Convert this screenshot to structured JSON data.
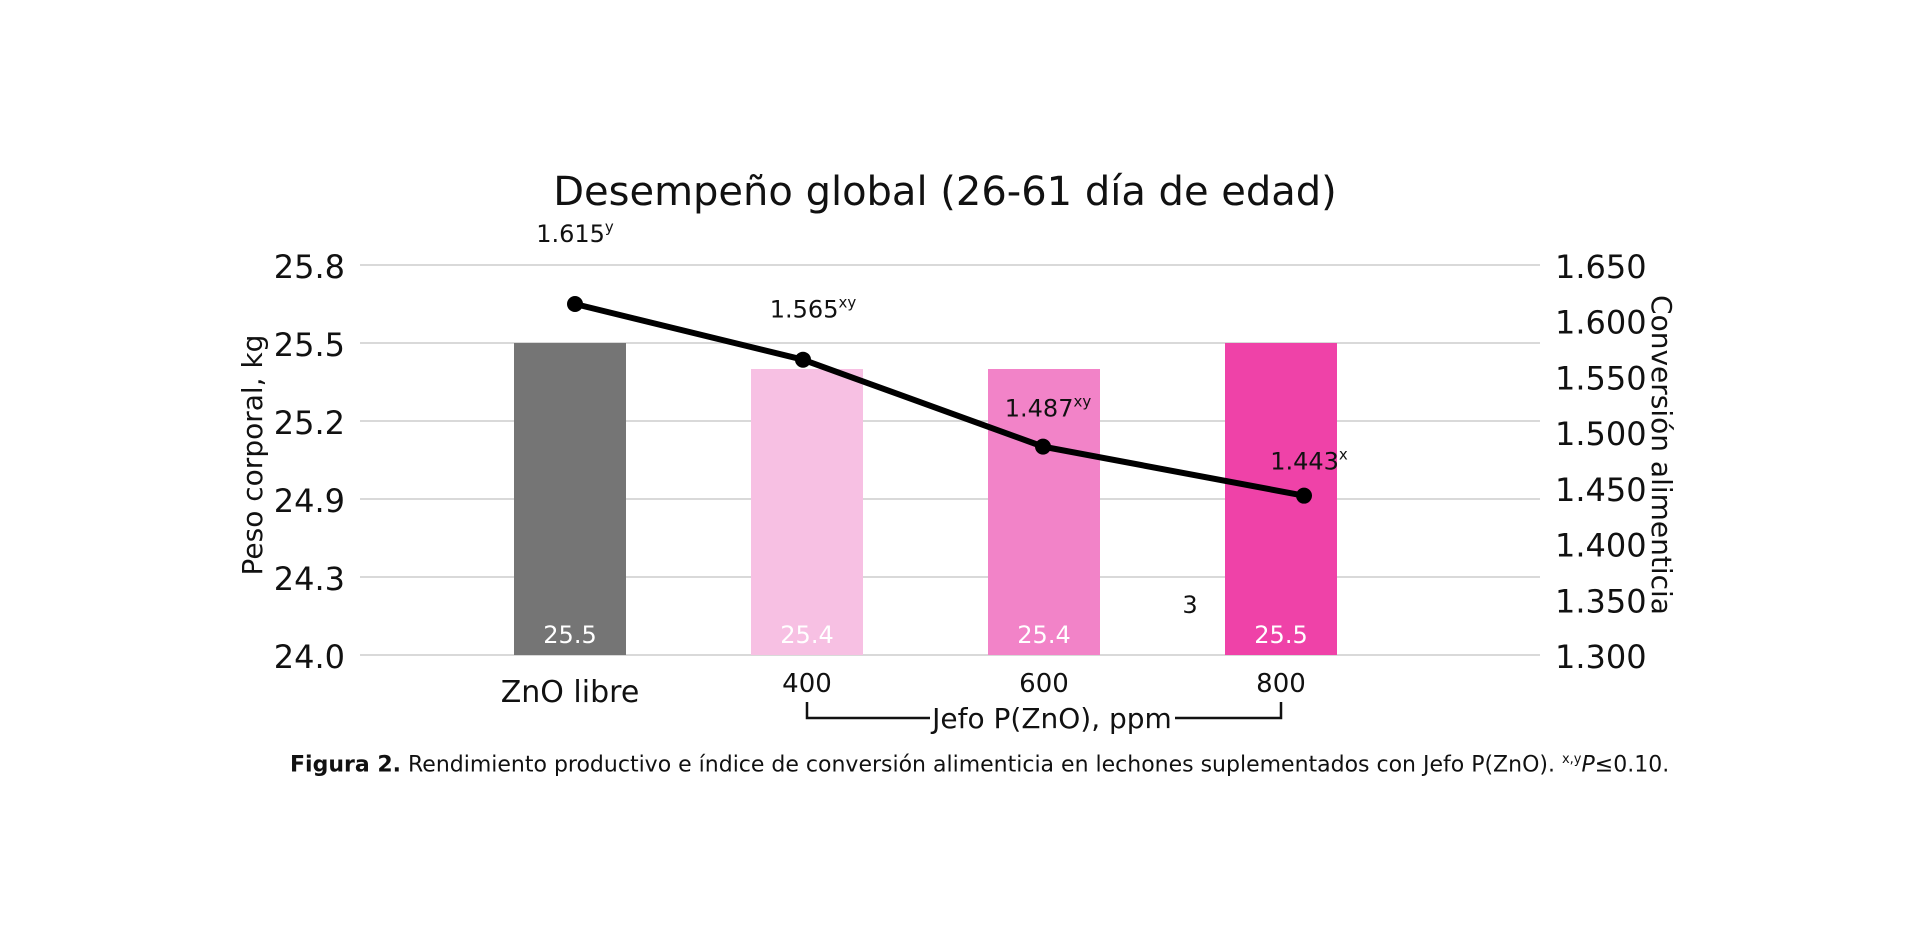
{
  "chart_data": {
    "type": "bar",
    "title": "Desempeño global (26-61 día de edad)",
    "categories": [
      "ZnO libre",
      "400",
      "600",
      "800"
    ],
    "group_label": "Jefo P(ZnO), ppm",
    "series": [
      {
        "name": "Peso corporal, kg",
        "type": "bar",
        "axis": "left",
        "values": [
          25.5,
          25.4,
          25.4,
          25.5
        ],
        "labels": [
          "25.5",
          "25.4",
          "25.4",
          "25.5"
        ],
        "colors": [
          "#757575",
          "#f7c0e3",
          "#f283c8",
          "#ef42a8"
        ]
      },
      {
        "name": "Conversión alimenticia",
        "type": "line",
        "axis": "right",
        "values": [
          1.615,
          1.565,
          1.487,
          1.443
        ],
        "labels": [
          "1.615",
          "1.565",
          "1.487",
          "1.443"
        ],
        "superscripts": [
          "y",
          "xy",
          "xy",
          "x"
        ]
      }
    ],
    "ylabel": "Peso corporal, kg",
    "y2label": "Conversión alimenticia",
    "y_ticks": [
      "24.0",
      "24.3",
      "24.9",
      "25.2",
      "25.5",
      "25.8"
    ],
    "y2_ticks": [
      "1.300",
      "1.350",
      "1.400",
      "1.450",
      "1.500",
      "1.550",
      "1.600",
      "1.650"
    ],
    "y2lim": [
      1.3,
      1.65
    ],
    "annotations": [
      "3"
    ],
    "line_color": "#000000",
    "grid_color": "#d9d9d9"
  },
  "caption": {
    "label": "Figura 2.",
    "text": " Rendimiento productivo e índice de conversión alimenticia en lechones suplementados con Jefo P(ZnO). ",
    "sig_sup": "x,y",
    "sig_p": "P",
    "sig_tail": "≤0.10."
  }
}
